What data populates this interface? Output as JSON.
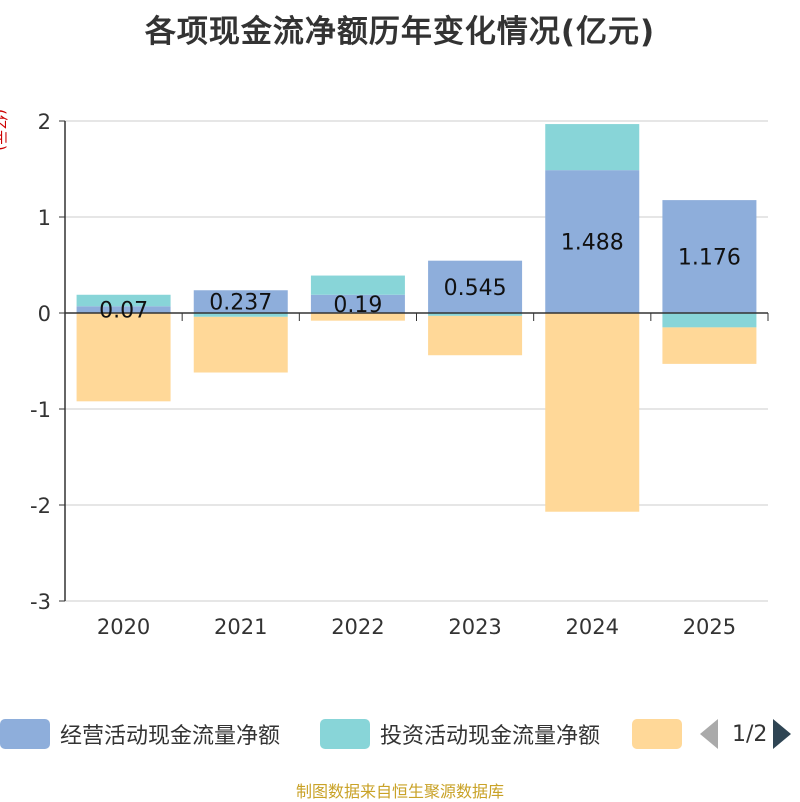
{
  "title": "各项现金流净额历年变化情况(亿元)",
  "unit_label": "(亿元)",
  "source": "制图数据来自恒生聚源数据库",
  "legend": {
    "items": [
      {
        "label": "经营活动现金流量净额",
        "color": "#8eaedb"
      },
      {
        "label": "投资活动现金流量净额",
        "color": "#88d5d8"
      },
      {
        "label": "",
        "color": "#ffd898"
      }
    ],
    "page": "1/2"
  },
  "chart_data": {
    "type": "bar",
    "stacked": true,
    "categories": [
      "2020",
      "2021",
      "2022",
      "2023",
      "2024",
      "2025"
    ],
    "series": [
      {
        "name": "经营活动现金流量净额",
        "color": "#8eaedb",
        "values": [
          0.07,
          0.237,
          0.19,
          0.545,
          1.488,
          1.176
        ],
        "labels": [
          "0.07",
          "0.237",
          "0.19",
          "0.545",
          "1.488",
          "1.176"
        ]
      },
      {
        "name": "投资活动现金流量净额",
        "color": "#88d5d8",
        "values": [
          0.12,
          -0.04,
          0.2,
          -0.03,
          0.48,
          -0.15
        ]
      },
      {
        "name": "",
        "color": "#ffd898",
        "values": [
          -0.92,
          -0.58,
          -0.08,
          -0.41,
          -2.07,
          -0.38
        ]
      }
    ],
    "ylim": [
      -3,
      2
    ],
    "yticks": [
      "2",
      "1",
      "0",
      "-1",
      "-2",
      "-3"
    ],
    "ytick_values": [
      2,
      1,
      0,
      -1,
      -2,
      -3
    ],
    "grid": true
  }
}
